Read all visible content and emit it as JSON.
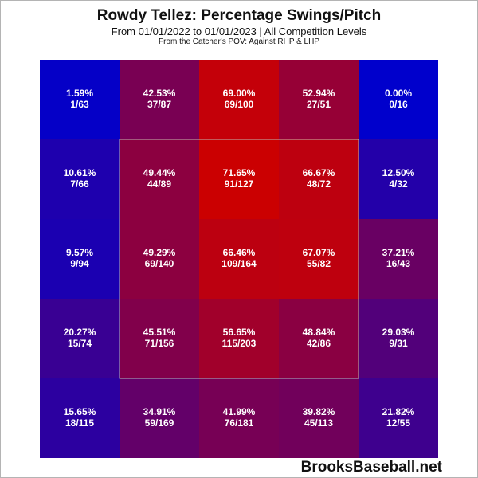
{
  "title": "Rowdy Tellez: Percentage Swings/Pitch",
  "subtitle": "From 01/01/2022 to 01/01/2023 | All Competition Levels",
  "note": "From the Catcher's POV:   Against RHP & LHP",
  "brand": "BrooksBaseball.net",
  "chart_data": {
    "type": "heatmap",
    "grid": {
      "rows": 5,
      "cols": 5
    },
    "strike_zone": {
      "row_start": 1,
      "row_end": 3,
      "col_start": 1,
      "col_end": 3
    },
    "color_scale": {
      "low": "#0000cc",
      "high": "#cc0000",
      "min": 0,
      "max": 72
    },
    "cells": [
      [
        {
          "pct": 1.59,
          "pct_label": "1.59%",
          "count": "1/63"
        },
        {
          "pct": 42.53,
          "pct_label": "42.53%",
          "count": "37/87"
        },
        {
          "pct": 69.0,
          "pct_label": "69.00%",
          "count": "69/100"
        },
        {
          "pct": 52.94,
          "pct_label": "52.94%",
          "count": "27/51"
        },
        {
          "pct": 0.0,
          "pct_label": "0.00%",
          "count": "0/16"
        }
      ],
      [
        {
          "pct": 10.61,
          "pct_label": "10.61%",
          "count": "7/66"
        },
        {
          "pct": 49.44,
          "pct_label": "49.44%",
          "count": "44/89"
        },
        {
          "pct": 71.65,
          "pct_label": "71.65%",
          "count": "91/127"
        },
        {
          "pct": 66.67,
          "pct_label": "66.67%",
          "count": "48/72"
        },
        {
          "pct": 12.5,
          "pct_label": "12.50%",
          "count": "4/32"
        }
      ],
      [
        {
          "pct": 9.57,
          "pct_label": "9.57%",
          "count": "9/94"
        },
        {
          "pct": 49.29,
          "pct_label": "49.29%",
          "count": "69/140"
        },
        {
          "pct": 66.46,
          "pct_label": "66.46%",
          "count": "109/164"
        },
        {
          "pct": 67.07,
          "pct_label": "67.07%",
          "count": "55/82"
        },
        {
          "pct": 37.21,
          "pct_label": "37.21%",
          "count": "16/43"
        }
      ],
      [
        {
          "pct": 20.27,
          "pct_label": "20.27%",
          "count": "15/74"
        },
        {
          "pct": 45.51,
          "pct_label": "45.51%",
          "count": "71/156"
        },
        {
          "pct": 56.65,
          "pct_label": "56.65%",
          "count": "115/203"
        },
        {
          "pct": 48.84,
          "pct_label": "48.84%",
          "count": "42/86"
        },
        {
          "pct": 29.03,
          "pct_label": "29.03%",
          "count": "9/31"
        }
      ],
      [
        {
          "pct": 15.65,
          "pct_label": "15.65%",
          "count": "18/115"
        },
        {
          "pct": 34.91,
          "pct_label": "34.91%",
          "count": "59/169"
        },
        {
          "pct": 41.99,
          "pct_label": "41.99%",
          "count": "76/181"
        },
        {
          "pct": 39.82,
          "pct_label": "39.82%",
          "count": "45/113"
        },
        {
          "pct": 21.82,
          "pct_label": "21.82%",
          "count": "12/55"
        }
      ]
    ]
  }
}
